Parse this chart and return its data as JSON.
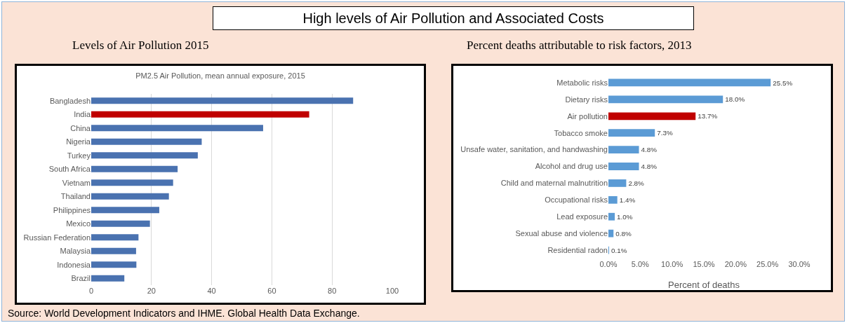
{
  "chart_data": [
    {
      "type": "bar",
      "orientation": "horizontal",
      "title": "Levels of Air Pollution 2015",
      "subtitle": "PM2.5 Air Pollution, mean annual exposure, 2015",
      "annotations": [
        "High levels of Air Pollution and Associated Costs",
        "Source: World Development Indicators and IHME. Global Health Data Exchange."
      ],
      "categories": [
        "Bangladesh",
        "India",
        "China",
        "Nigeria",
        "Turkey",
        "South Africa",
        "Vietnam",
        "Thailand",
        "Philippines",
        "Mexico",
        "Russian Federation",
        "Malaysia",
        "Indonesia",
        "Brazil"
      ],
      "values": [
        87.0,
        72.4,
        57.1,
        36.7,
        35.4,
        28.7,
        27.2,
        25.8,
        22.6,
        19.5,
        15.7,
        14.9,
        15.0,
        11.0
      ],
      "colors": [
        "#4a72b0",
        "#c00000",
        "#4a72b0",
        "#4a72b0",
        "#4a72b0",
        "#4a72b0",
        "#4a72b0",
        "#4a72b0",
        "#4a72b0",
        "#4a72b0",
        "#4a72b0",
        "#4a72b0",
        "#4a72b0",
        "#4a72b0"
      ],
      "xlim": [
        0,
        100
      ],
      "xticks": [
        0,
        20,
        40,
        60,
        80,
        100
      ],
      "grid": "x"
    },
    {
      "type": "bar",
      "orientation": "horizontal",
      "title": "Percent deaths attributable to risk factors, 2013",
      "xlabel": "Percent of deaths",
      "categories": [
        "Metabolic risks",
        "Dietary risks",
        "Air pollution",
        "Tobacco smoke",
        "Unsafe water, sanitation, and handwashing",
        "Alcohol and drug use",
        "Child and maternal malnutrition",
        "Occupational risks",
        "Lead exposure",
        "Sexual abuse and violence",
        "Residential radon"
      ],
      "values": [
        25.5,
        18.0,
        13.7,
        7.3,
        4.8,
        4.8,
        2.8,
        1.4,
        1.0,
        0.8,
        0.1
      ],
      "value_labels": [
        "25.5%",
        "18.0%",
        "13.7%",
        "7.3%",
        "4.8%",
        "4.8%",
        "2.8%",
        "1.4%",
        "1.0%",
        "0.8%",
        "0.1%"
      ],
      "colors": [
        "#5b9bd5",
        "#5b9bd5",
        "#c00000",
        "#5b9bd5",
        "#5b9bd5",
        "#5b9bd5",
        "#5b9bd5",
        "#5b9bd5",
        "#5b9bd5",
        "#5b9bd5",
        "#5b9bd5"
      ],
      "xlim": [
        0,
        30
      ],
      "xticks": [
        {
          "value": 0,
          "label": "0.0%"
        },
        {
          "value": 5,
          "label": "5.0%"
        },
        {
          "value": 10,
          "label": "10.0%"
        },
        {
          "value": 15,
          "label": "15.0%"
        },
        {
          "value": 20,
          "label": "20.0%"
        },
        {
          "value": 25,
          "label": "25.0%"
        },
        {
          "value": 30,
          "label": "30.0%"
        }
      ]
    }
  ]
}
